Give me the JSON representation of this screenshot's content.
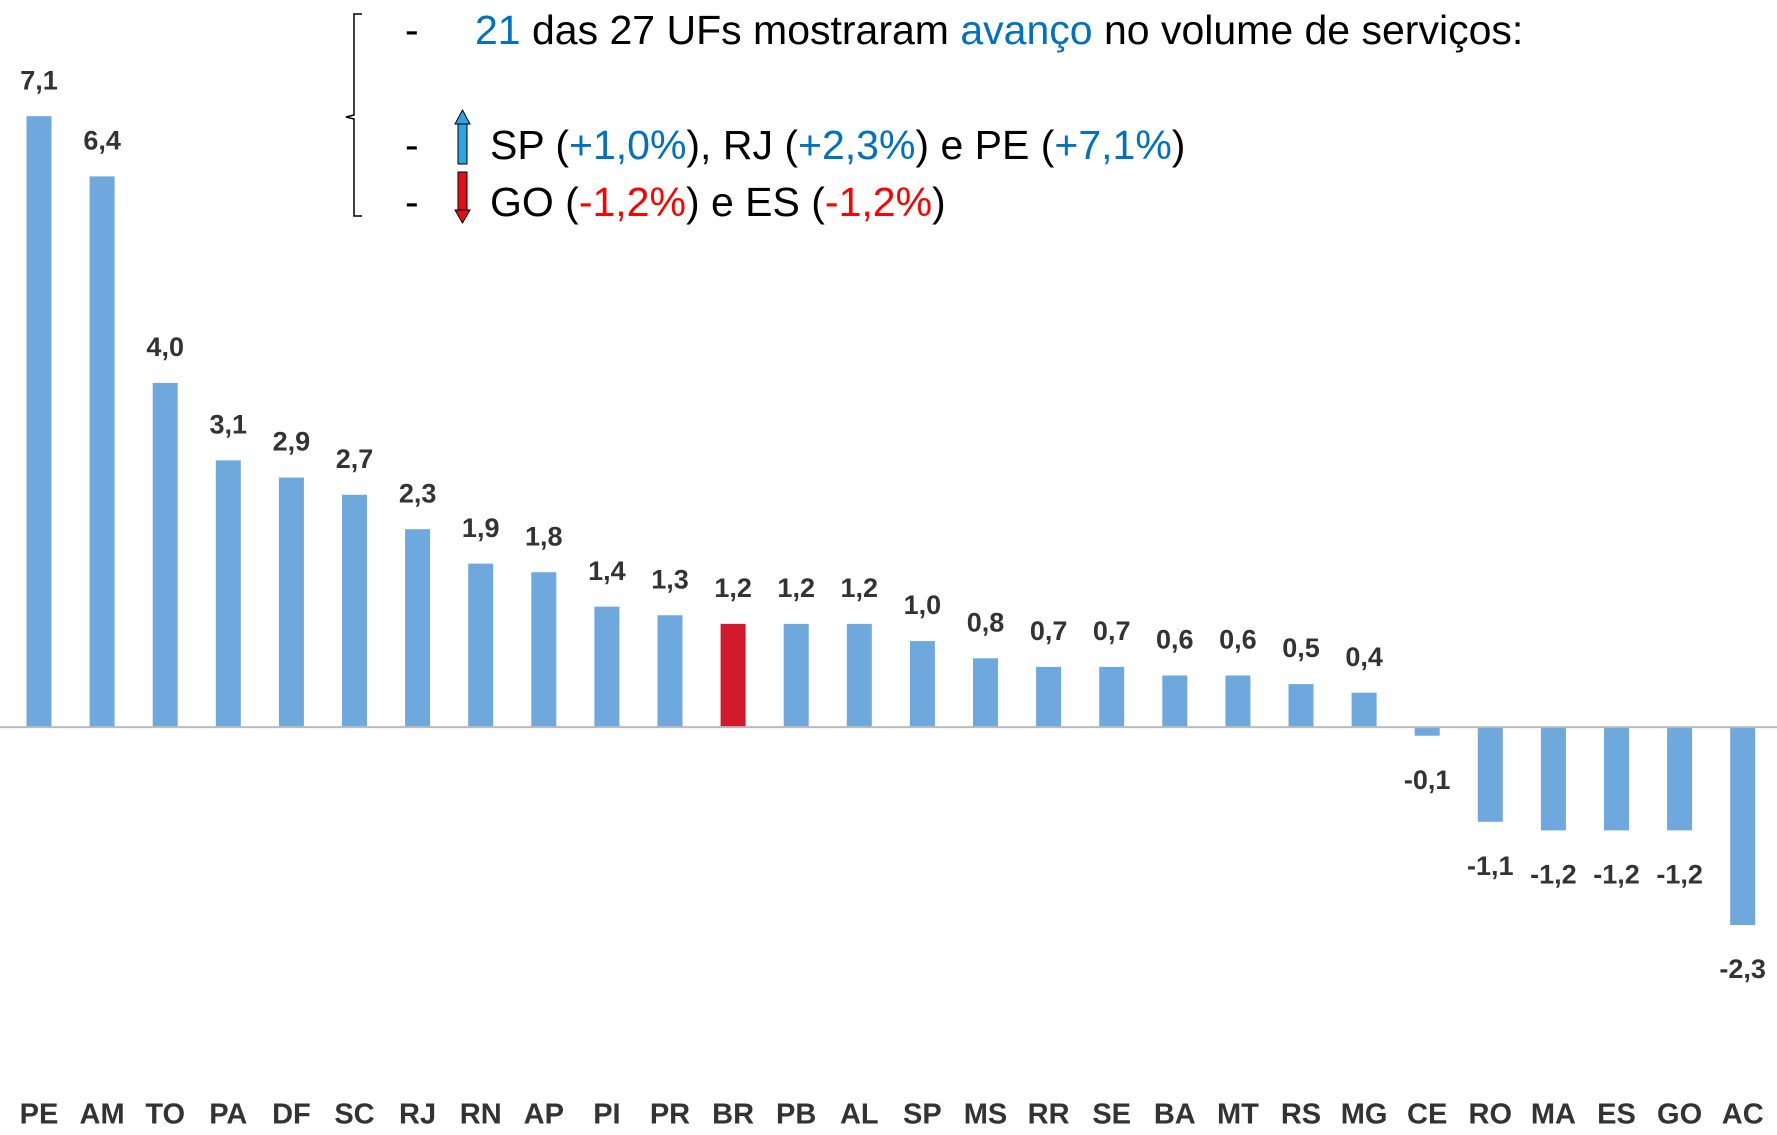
{
  "chart_data": {
    "type": "bar",
    "categories": [
      "PE",
      "AM",
      "TO",
      "PA",
      "DF",
      "SC",
      "RJ",
      "RN",
      "AP",
      "PI",
      "PR",
      "BR",
      "PB",
      "AL",
      "SP",
      "MS",
      "RR",
      "SE",
      "BA",
      "MT",
      "RS",
      "MG",
      "CE",
      "RO",
      "MA",
      "ES",
      "GO",
      "AC"
    ],
    "values": [
      7.1,
      6.4,
      4.0,
      3.1,
      2.9,
      2.7,
      2.3,
      1.9,
      1.8,
      1.4,
      1.3,
      1.2,
      1.2,
      1.2,
      1.0,
      0.8,
      0.7,
      0.7,
      0.6,
      0.6,
      0.5,
      0.4,
      -0.1,
      -1.1,
      -1.2,
      -1.2,
      -1.2,
      -2.3
    ],
    "value_labels": [
      "7,1",
      "6,4",
      "4,0",
      "3,1",
      "2,9",
      "2,7",
      "2,3",
      "1,9",
      "1,8",
      "1,4",
      "1,3",
      "1,2",
      "1,2",
      "1,2",
      "1,0",
      "0,8",
      "0,7",
      "0,7",
      "0,6",
      "0,6",
      "0,5",
      "0,4",
      "-0,1",
      "-1,1",
      "-1,2",
      "-1,2",
      "-1,2",
      "-2,3"
    ],
    "color": "#6fa8dc",
    "colors": [
      "#6fa8dc",
      "#6fa8dc",
      "#6fa8dc",
      "#6fa8dc",
      "#6fa8dc",
      "#6fa8dc",
      "#6fa8dc",
      "#6fa8dc",
      "#6fa8dc",
      "#6fa8dc",
      "#6fa8dc",
      "#d0192b",
      "#6fa8dc",
      "#6fa8dc",
      "#6fa8dc",
      "#6fa8dc",
      "#6fa8dc",
      "#6fa8dc",
      "#6fa8dc",
      "#6fa8dc",
      "#6fa8dc",
      "#6fa8dc",
      "#6fa8dc",
      "#6fa8dc",
      "#6fa8dc",
      "#6fa8dc",
      "#6fa8dc",
      "#6fa8dc"
    ],
    "ylim": [
      -4.74,
      8.45
    ],
    "annotations": [
      {
        "bullet": "-",
        "segments": [
          {
            "text": "21",
            "color": "#0070c0"
          },
          {
            "text": " das 27 UFs mostraram ",
            "color": "#000000"
          },
          {
            "text": "avanço",
            "color": "#0070c0"
          },
          {
            "text": " no volume de serviços:",
            "color": "#000000"
          }
        ]
      },
      {
        "bullet": "-",
        "segments": [
          {
            "text": "SP (",
            "color": "#000000"
          },
          {
            "text": "+1,0%",
            "color": "#0070c0"
          },
          {
            "text": "), RJ (",
            "color": "#000000"
          },
          {
            "text": "+2,3%",
            "color": "#0070c0"
          },
          {
            "text": ") e PE (",
            "color": "#000000"
          },
          {
            "text": "+7,1%",
            "color": "#0070c0"
          },
          {
            "text": ")",
            "color": "#000000"
          }
        ]
      },
      {
        "bullet": "-",
        "segments": [
          {
            "text": "GO (",
            "color": "#000000"
          },
          {
            "text": "-1,2%",
            "color": "#ff0000"
          },
          {
            "text": ") e ES (",
            "color": "#000000"
          },
          {
            "text": "-1,2%",
            "color": "#ff0000"
          },
          {
            "text": ")",
            "color": "#000000"
          }
        ]
      }
    ]
  }
}
